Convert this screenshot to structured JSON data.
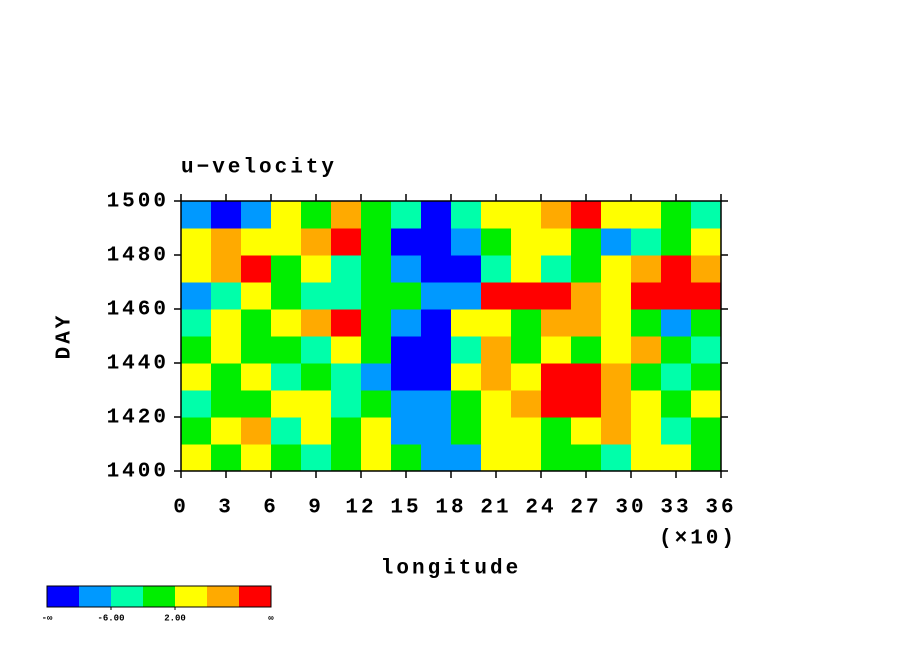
{
  "chart_data": {
    "type": "contour",
    "title": "u−velocity",
    "xlabel": "longitude",
    "x_multiplier": "(×10)",
    "ylabel": "DAY",
    "xlim": [
      0,
      36
    ],
    "xticks": [
      0,
      3,
      6,
      9,
      12,
      15,
      18,
      21,
      24,
      27,
      30,
      33,
      36
    ],
    "ylim": [
      1400,
      1500
    ],
    "yticks": [
      1400,
      1420,
      1440,
      1460,
      1480,
      1500
    ],
    "x": [
      1,
      3,
      5,
      7,
      9,
      11,
      13,
      15,
      17,
      19,
      21,
      23,
      25,
      27,
      29,
      31,
      33,
      35
    ],
    "y": [
      1405,
      1415,
      1425,
      1435,
      1445,
      1455,
      1465,
      1475,
      1485,
      1495
    ],
    "z": [
      [
        2,
        -2,
        4,
        0,
        -4,
        1,
        3,
        -1,
        -7,
        -8,
        5,
        3,
        1,
        0,
        -3,
        2,
        4,
        1
      ],
      [
        0,
        3,
        7,
        -5,
        2,
        -1,
        4,
        -8,
        -9,
        1,
        3,
        5,
        -2,
        4,
        8,
        2,
        -4,
        1
      ],
      [
        -3,
        1,
        -2,
        2,
        5,
        -4,
        0,
        -7,
        -9,
        -1,
        4,
        9,
        11,
        12,
        9,
        3,
        -2,
        5
      ],
      [
        5,
        -1,
        3,
        -6,
        1,
        -3,
        -8,
        -11,
        -12,
        2,
        6,
        4,
        10,
        12,
        6,
        1,
        -3,
        -1
      ],
      [
        1,
        4,
        -2,
        0,
        -5,
        3,
        -1,
        -12,
        -13,
        -3,
        7,
        1,
        3,
        -2,
        4,
        8,
        0,
        -3
      ],
      [
        -4,
        3,
        1,
        5,
        6,
        11,
        -2,
        -9,
        -11,
        4,
        2,
        -1,
        6,
        9,
        3,
        0,
        -7,
        -2
      ],
      [
        -9,
        -3,
        2,
        1,
        -6,
        -4,
        -2,
        -1,
        -10,
        -8,
        11,
        12,
        11,
        9,
        5,
        10,
        11,
        12
      ],
      [
        5,
        8,
        12,
        -1,
        3,
        -5,
        0,
        -10,
        -12,
        -11,
        -6,
        2,
        -3,
        1,
        4,
        8,
        12,
        7
      ],
      [
        3,
        6,
        4,
        2,
        8,
        10,
        -2,
        -11,
        -12,
        -7,
        1,
        5,
        3,
        -2,
        -10,
        -6,
        0,
        4
      ],
      [
        -10,
        -11,
        -8,
        3,
        0,
        6,
        1,
        -5,
        -13,
        -4,
        2,
        4,
        9,
        11,
        3,
        5,
        -1,
        -6
      ]
    ],
    "levels": [
      -10,
      -6,
      -2,
      2,
      6,
      10
    ],
    "colors": [
      "#0000ff",
      "#0099ff",
      "#00ffaa",
      "#00ee00",
      "#ffff00",
      "#ffaa00",
      "#ff0000"
    ],
    "colorbar": {
      "min_label": "-∞",
      "max_label": "∞",
      "ticks": [
        {
          "value": -6,
          "label": "-6.00"
        },
        {
          "value": 2,
          "label": "2.00"
        }
      ]
    }
  }
}
